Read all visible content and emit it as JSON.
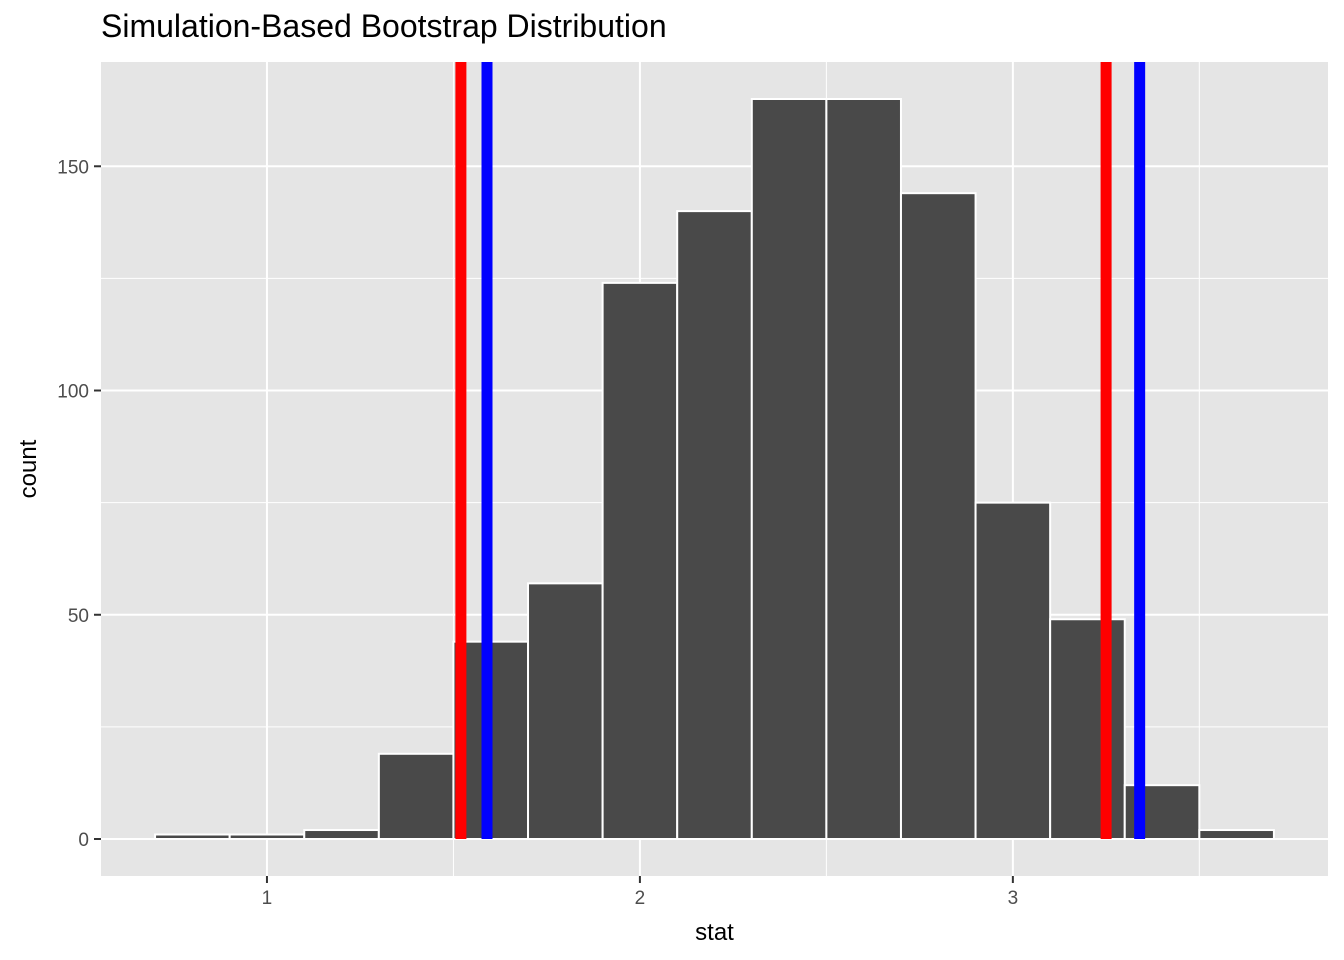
{
  "chart_data": {
    "type": "bar",
    "title": "Simulation-Based Bootstrap Distribution",
    "xlabel": "stat",
    "ylabel": "count",
    "bin_width": 0.2,
    "bins": [
      {
        "start": 0.7,
        "end": 0.9,
        "count": 1
      },
      {
        "start": 0.9,
        "end": 1.1,
        "count": 1
      },
      {
        "start": 1.1,
        "end": 1.3,
        "count": 2
      },
      {
        "start": 1.3,
        "end": 1.5,
        "count": 19
      },
      {
        "start": 1.5,
        "end": 1.7,
        "count": 44
      },
      {
        "start": 1.7,
        "end": 1.9,
        "count": 57
      },
      {
        "start": 1.9,
        "end": 2.1,
        "count": 124
      },
      {
        "start": 2.1,
        "end": 2.3,
        "count": 140
      },
      {
        "start": 2.3,
        "end": 2.5,
        "count": 165
      },
      {
        "start": 2.5,
        "end": 2.7,
        "count": 165
      },
      {
        "start": 2.7,
        "end": 2.9,
        "count": 144
      },
      {
        "start": 2.9,
        "end": 3.1,
        "count": 75
      },
      {
        "start": 3.1,
        "end": 3.3,
        "count": 49
      },
      {
        "start": 3.3,
        "end": 3.5,
        "count": 12
      },
      {
        "start": 3.5,
        "end": 3.7,
        "count": 2
      }
    ],
    "vlines": [
      {
        "x": 1.52,
        "color": "#ff0000"
      },
      {
        "x": 1.59,
        "color": "#0000ff"
      },
      {
        "x": 3.25,
        "color": "#ff0000"
      },
      {
        "x": 3.34,
        "color": "#0000ff"
      }
    ],
    "xlim": [
      0.555,
      3.845
    ],
    "ylim": [
      -8.25,
      173.25
    ],
    "x_ticks": [
      1,
      2,
      3
    ],
    "x_tick_labels": [
      "1",
      "2",
      "3"
    ],
    "y_ticks": [
      0,
      50,
      100,
      150
    ],
    "y_tick_labels": [
      "0",
      "50",
      "100",
      "150"
    ],
    "grid": true,
    "colors": {
      "panel_background": "#e5e5e5",
      "grid": "#ffffff",
      "bar_fill": "#494949",
      "bar_outline": "#ffffff"
    }
  }
}
